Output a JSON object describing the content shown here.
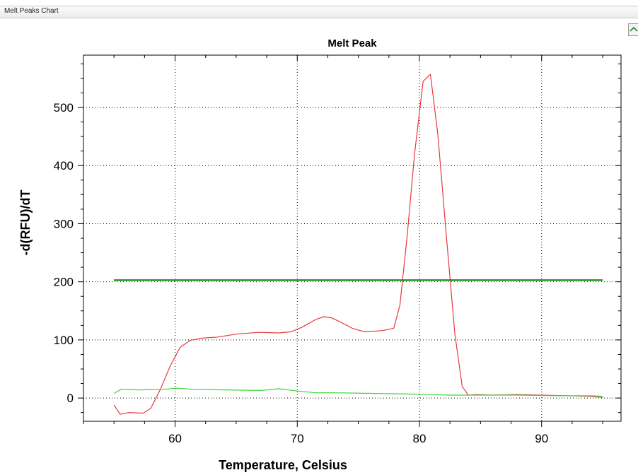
{
  "window": {
    "panel_title": "Melt Peaks Chart",
    "corner_icon": "chevron-up-icon"
  },
  "chart_data": {
    "type": "line",
    "title": "Melt Peak",
    "xlabel": "Temperature, Celsius",
    "ylabel": "-d(RFU)/dT",
    "xlim": [
      52.5,
      96.5
    ],
    "ylim": [
      -40,
      590
    ],
    "xticks": [
      60,
      70,
      80,
      90
    ],
    "yticks": [
      0,
      100,
      200,
      300,
      400,
      500
    ],
    "grid": true,
    "legend": "none",
    "series": [
      {
        "color": "#e8393c",
        "points": [
          [
            55.0,
            -12
          ],
          [
            55.5,
            -28
          ],
          [
            56.2,
            -25
          ],
          [
            57.4,
            -26
          ],
          [
            58.0,
            -18
          ],
          [
            58.8,
            15
          ],
          [
            59.6,
            55
          ],
          [
            60.4,
            87
          ],
          [
            61.2,
            99
          ],
          [
            62.2,
            103
          ],
          [
            63.5,
            105
          ],
          [
            65.0,
            110
          ],
          [
            66.8,
            113
          ],
          [
            68.5,
            112
          ],
          [
            69.5,
            114
          ],
          [
            70.4,
            122
          ],
          [
            71.5,
            135
          ],
          [
            72.2,
            140
          ],
          [
            72.8,
            138
          ],
          [
            73.6,
            130
          ],
          [
            74.5,
            120
          ],
          [
            75.5,
            114
          ],
          [
            77.0,
            116
          ],
          [
            77.9,
            120
          ],
          [
            78.4,
            160
          ],
          [
            79.0,
            280
          ],
          [
            79.6,
            420
          ],
          [
            80.3,
            545
          ],
          [
            80.9,
            557
          ],
          [
            81.5,
            455
          ],
          [
            82.2,
            280
          ],
          [
            82.9,
            110
          ],
          [
            83.5,
            20
          ],
          [
            84.0,
            5
          ],
          [
            84.6,
            6
          ],
          [
            86.0,
            5
          ],
          [
            88.0,
            6
          ],
          [
            90.0,
            5
          ],
          [
            92.0,
            4
          ],
          [
            94.0,
            3
          ],
          [
            95.0,
            1
          ]
        ]
      },
      {
        "color": "#39d639",
        "points": [
          [
            55.0,
            8
          ],
          [
            55.6,
            15
          ],
          [
            57.0,
            14
          ],
          [
            59.0,
            15
          ],
          [
            60.2,
            17
          ],
          [
            61.5,
            15
          ],
          [
            64.0,
            14
          ],
          [
            67.0,
            13
          ],
          [
            68.5,
            16
          ],
          [
            70.0,
            12
          ],
          [
            71.5,
            9
          ],
          [
            73.0,
            9
          ],
          [
            76.0,
            8
          ],
          [
            79.0,
            7
          ],
          [
            81.0,
            6
          ],
          [
            82.5,
            5
          ],
          [
            83.5,
            5
          ],
          [
            85.0,
            5
          ],
          [
            88.0,
            5
          ],
          [
            91.0,
            4
          ],
          [
            94.0,
            4
          ],
          [
            95.0,
            3
          ]
        ]
      },
      {
        "color": "#008000",
        "points": [
          [
            55.0,
            203
          ],
          [
            95.0,
            203
          ]
        ]
      }
    ]
  }
}
